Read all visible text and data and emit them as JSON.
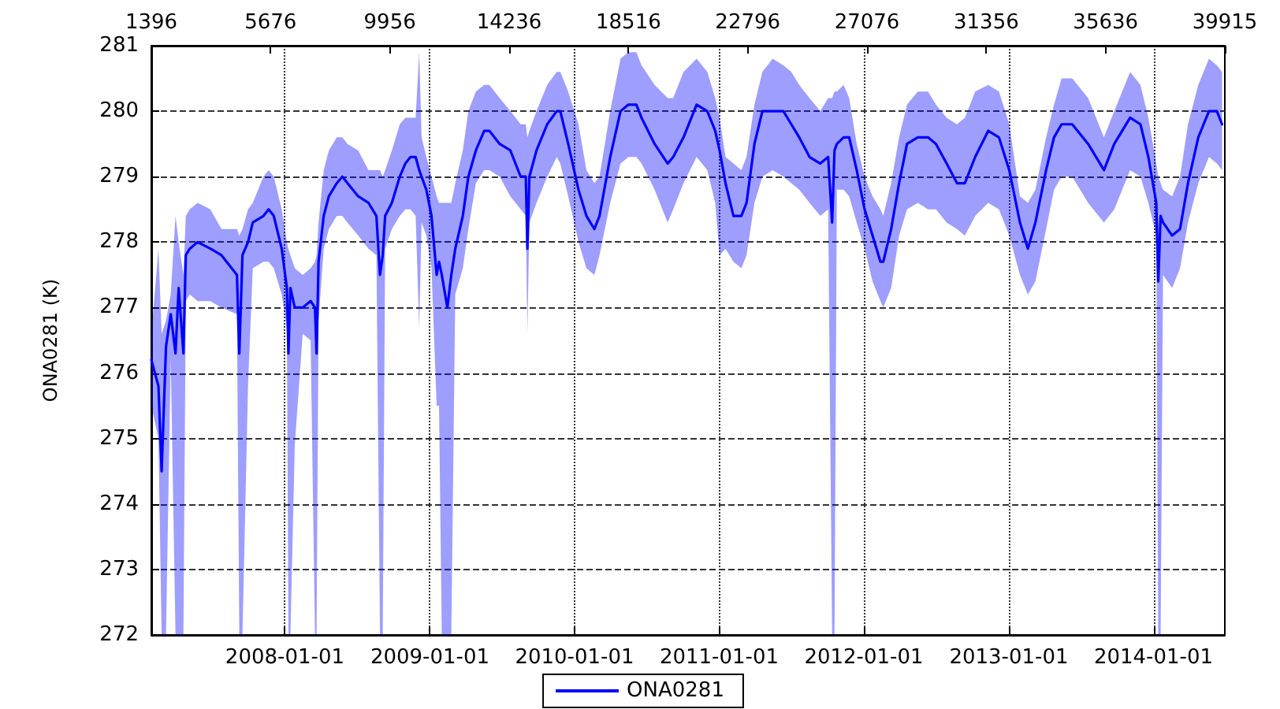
{
  "chart_data": {
    "type": "line",
    "ylabel": "ONA0281 (K)",
    "x": [
      "2007-01-29",
      "2007-02-16",
      "2007-02-24",
      "2007-03-07",
      "2007-03-19",
      "2007-03-31",
      "2007-04-08",
      "2007-04-20",
      "2007-04-26",
      "2007-05-06",
      "2007-05-26",
      "2007-06-27",
      "2007-07-25",
      "2007-09-02",
      "2007-09-08",
      "2007-09-16",
      "2007-09-30",
      "2007-10-12",
      "2007-11-08",
      "2007-11-21",
      "2007-12-04",
      "2007-12-24",
      "2008-01-06",
      "2008-01-10",
      "2008-01-15",
      "2008-01-26",
      "2008-02-15",
      "2008-03-06",
      "2008-03-17",
      "2008-03-21",
      "2008-03-26",
      "2008-04-08",
      "2008-04-21",
      "2008-05-11",
      "2008-05-25",
      "2008-06-07",
      "2008-07-04",
      "2008-07-30",
      "2008-08-19",
      "2008-08-28",
      "2008-09-04",
      "2008-09-10",
      "2008-09-27",
      "2008-10-17",
      "2008-10-31",
      "2008-11-13",
      "2008-11-26",
      "2008-12-05",
      "2008-12-11",
      "2008-12-23",
      "2009-01-05",
      "2009-01-18",
      "2009-01-24",
      "2009-01-31",
      "2009-02-14",
      "2009-02-24",
      "2009-03-06",
      "2009-03-25",
      "2009-04-08",
      "2009-04-27",
      "2009-05-18",
      "2009-05-31",
      "2009-06-26",
      "2009-07-23",
      "2009-08-18",
      "2009-08-31",
      "2009-09-04",
      "2009-09-09",
      "2009-09-27",
      "2009-10-24",
      "2009-11-17",
      "2009-11-26",
      "2009-12-16",
      "2010-01-11",
      "2010-01-31",
      "2010-02-20",
      "2010-03-05",
      "2010-04-01",
      "2010-04-27",
      "2010-05-17",
      "2010-06-06",
      "2010-06-19",
      "2010-07-22",
      "2010-08-24",
      "2010-09-07",
      "2010-10-03",
      "2010-11-05",
      "2010-12-02",
      "2010-12-22",
      "2011-01-02",
      "2011-01-17",
      "2011-02-06",
      "2011-02-26",
      "2011-03-11",
      "2011-03-31",
      "2011-04-20",
      "2011-05-16",
      "2011-06-12",
      "2011-07-02",
      "2011-07-22",
      "2011-08-17",
      "2011-09-13",
      "2011-10-03",
      "2011-10-13",
      "2011-10-19",
      "2011-10-25",
      "2011-11-11",
      "2011-11-25",
      "2011-12-14",
      "2012-01-03",
      "2012-01-23",
      "2012-02-12",
      "2012-02-19",
      "2012-03-10",
      "2012-03-30",
      "2012-04-19",
      "2012-05-16",
      "2012-06-11",
      "2012-07-01",
      "2012-07-28",
      "2012-08-23",
      "2012-09-12",
      "2012-10-08",
      "2012-11-10",
      "2012-12-07",
      "2013-01-02",
      "2013-01-29",
      "2013-02-18",
      "2013-03-09",
      "2013-04-05",
      "2013-04-25",
      "2013-05-14",
      "2013-06-10",
      "2013-07-20",
      "2013-08-29",
      "2013-09-24",
      "2013-11-03",
      "2013-11-29",
      "2013-12-19",
      "2014-01-08",
      "2014-01-13",
      "2014-01-19",
      "2014-01-25",
      "2014-02-17",
      "2014-03-09",
      "2014-03-29",
      "2014-04-24",
      "2014-05-21",
      "2014-06-10",
      "2014-06-23"
    ],
    "series": [
      {
        "name": "ONA0281",
        "color": "#0000ff",
        "values": [
          276.2,
          275.8,
          274.5,
          276.4,
          276.9,
          276.3,
          277.3,
          276.3,
          277.8,
          277.9,
          278.0,
          277.9,
          277.8,
          277.5,
          276.3,
          277.8,
          278.0,
          278.3,
          278.4,
          278.5,
          278.4,
          277.9,
          277.3,
          276.3,
          277.3,
          277.0,
          277.0,
          277.1,
          277.0,
          276.3,
          277.7,
          278.4,
          278.7,
          278.9,
          279.0,
          278.9,
          278.7,
          278.6,
          278.4,
          277.5,
          277.8,
          278.4,
          278.6,
          279.0,
          279.2,
          279.3,
          279.3,
          279.1,
          279.0,
          278.8,
          278.4,
          277.5,
          277.7,
          277.5,
          277.0,
          277.5,
          277.9,
          278.4,
          279.0,
          279.4,
          279.7,
          279.7,
          279.5,
          279.4,
          279.0,
          279.0,
          277.9,
          279.0,
          279.4,
          279.8,
          280.0,
          280.0,
          279.5,
          278.8,
          278.4,
          278.2,
          278.4,
          279.3,
          280.0,
          280.1,
          280.1,
          279.9,
          279.5,
          279.2,
          279.3,
          279.6,
          280.1,
          280.0,
          279.7,
          279.4,
          278.9,
          278.4,
          278.4,
          278.6,
          279.5,
          280.0,
          280.0,
          280.0,
          279.8,
          279.6,
          279.3,
          279.2,
          279.3,
          278.3,
          279.4,
          279.5,
          279.6,
          279.6,
          279.1,
          278.5,
          278.1,
          277.7,
          277.7,
          278.2,
          278.9,
          279.5,
          279.6,
          279.6,
          279.5,
          279.2,
          278.9,
          278.9,
          279.3,
          279.7,
          279.6,
          279.1,
          278.3,
          277.9,
          278.3,
          279.1,
          279.6,
          279.8,
          279.8,
          279.5,
          279.1,
          279.5,
          279.9,
          279.8,
          279.3,
          278.6,
          277.4,
          278.4,
          278.3,
          278.1,
          278.2,
          278.9,
          279.6,
          280.0,
          280.0,
          279.8
        ],
        "lower": [
          275.5,
          275.0,
          272,
          272,
          276.2,
          272,
          272,
          272,
          277.1,
          277.2,
          277.1,
          277.1,
          277.0,
          276.9,
          272,
          272,
          275.8,
          277.6,
          277.7,
          277.7,
          277.6,
          277.2,
          276.7,
          272,
          272,
          274.9,
          276.6,
          276.5,
          272,
          272,
          276.8,
          277.9,
          278.2,
          278.4,
          278.4,
          278.3,
          278.1,
          277.9,
          277.8,
          272,
          272,
          277.9,
          278.2,
          278.4,
          278.5,
          278.5,
          278.4,
          276.7,
          278.3,
          278.1,
          277.6,
          275.5,
          275.5,
          272,
          272,
          272,
          277.2,
          277.6,
          278.2,
          278.9,
          279.1,
          279.1,
          279.0,
          278.7,
          278.5,
          278.4,
          276.6,
          278.3,
          278.6,
          279.0,
          279.3,
          279.2,
          278.7,
          278.0,
          277.6,
          277.5,
          277.8,
          278.6,
          279.2,
          279.3,
          279.3,
          279.2,
          278.8,
          278.3,
          278.5,
          278.9,
          279.3,
          279.1,
          278.6,
          277.8,
          277.9,
          277.7,
          277.6,
          277.8,
          278.6,
          279.0,
          279.1,
          279.0,
          278.9,
          278.8,
          278.6,
          278.4,
          278.5,
          272,
          272,
          278.8,
          278.8,
          278.7,
          278.3,
          277.9,
          277.4,
          277.1,
          277.0,
          277.3,
          278.1,
          278.5,
          278.6,
          278.5,
          278.5,
          278.3,
          278.2,
          278.1,
          278.4,
          278.6,
          278.5,
          278.1,
          277.5,
          277.2,
          277.4,
          278.2,
          278.8,
          279.0,
          279.0,
          278.6,
          278.3,
          278.5,
          279.1,
          279.0,
          278.6,
          278.1,
          272,
          272,
          277.5,
          277.3,
          277.6,
          278.3,
          278.9,
          279.3,
          279.2,
          279.1
        ],
        "upper": [
          276.6,
          277.9,
          276.6,
          276.8,
          277.2,
          278.4,
          278.0,
          277.5,
          278.4,
          278.5,
          278.6,
          278.5,
          278.2,
          278.2,
          278.1,
          278.2,
          278.5,
          278.6,
          279.0,
          279.1,
          279.0,
          278.5,
          278.0,
          277.9,
          277.8,
          277.6,
          277.5,
          277.6,
          277.7,
          277.8,
          278.3,
          279.1,
          279.4,
          279.6,
          279.6,
          279.5,
          279.4,
          279.1,
          279.1,
          279.1,
          279.0,
          279.1,
          279.4,
          279.8,
          279.9,
          279.9,
          279.9,
          280.9,
          279.6,
          279.3,
          279.0,
          278.7,
          278.6,
          278.6,
          278.6,
          278.6,
          278.9,
          279.4,
          280.0,
          280.3,
          280.4,
          280.4,
          280.2,
          280.0,
          279.8,
          279.8,
          279.6,
          279.7,
          280.0,
          280.4,
          280.6,
          280.6,
          280.3,
          279.8,
          279.1,
          278.9,
          279.0,
          280.0,
          280.8,
          280.9,
          280.9,
          280.7,
          280.4,
          280.2,
          280.2,
          280.6,
          280.8,
          280.6,
          280.2,
          279.9,
          279.3,
          279.2,
          279.1,
          279.3,
          280.1,
          280.6,
          280.8,
          280.7,
          280.6,
          280.4,
          280.2,
          280.0,
          280.2,
          280.2,
          280.3,
          280.3,
          280.4,
          280.2,
          279.5,
          279.0,
          278.7,
          278.5,
          278.4,
          278.9,
          279.6,
          280.1,
          280.3,
          280.3,
          280.1,
          279.9,
          279.8,
          279.9,
          280.3,
          280.4,
          280.3,
          279.8,
          278.7,
          278.6,
          278.8,
          279.6,
          280.1,
          280.5,
          280.5,
          280.2,
          279.6,
          280.0,
          280.6,
          280.4,
          279.9,
          279.2,
          279.0,
          278.9,
          278.8,
          278.7,
          279.0,
          279.8,
          280.4,
          280.8,
          280.7,
          280.6
        ]
      }
    ],
    "xlim": [
      "2007-01-29",
      "2014-06-30"
    ],
    "xticks": [
      "2008-01-01",
      "2009-01-01",
      "2010-01-01",
      "2011-01-01",
      "2012-01-01",
      "2013-01-01",
      "2014-01-01"
    ],
    "x2lim": [
      1396,
      39915
    ],
    "x2ticks": [
      1396,
      5676,
      9956,
      14236,
      18516,
      22796,
      27076,
      31356,
      35636,
      39915
    ],
    "ylim": [
      272,
      281
    ],
    "yticks": [
      272,
      273,
      274,
      275,
      276,
      277,
      278,
      279,
      280,
      281
    ],
    "grid": true,
    "legend": "bottom"
  }
}
